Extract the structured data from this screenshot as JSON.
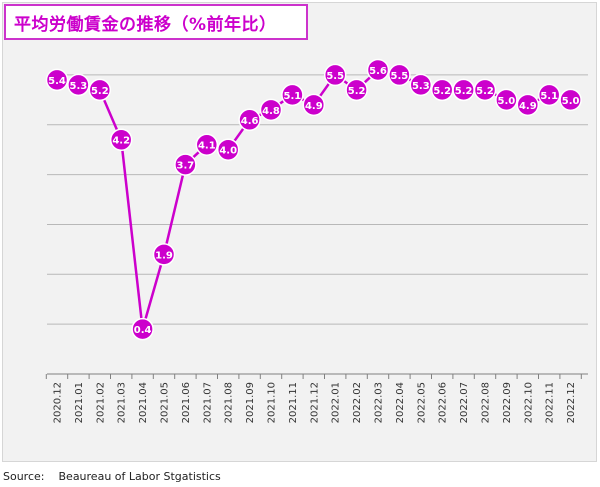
{
  "title": "平均労働賃金の推移（%前年比）",
  "source": {
    "label": "Source:",
    "text": "Beaureau of Labor Stgatistics"
  },
  "colors": {
    "series": "#cc00cc",
    "title_border": "#cc33cc",
    "grid": "#b8b8b8",
    "panel": "#f2f2f2"
  },
  "chart_data": {
    "type": "line",
    "title": "平均労働賃金の推移（%前年比）",
    "xlabel": "",
    "ylabel": "",
    "ylim": [
      -0.5,
      6.0
    ],
    "grid": true,
    "data_labels": true,
    "categories": [
      "2020.12",
      "2021.01",
      "2021.02",
      "2021.03",
      "2021.04",
      "2021.05",
      "2021.06",
      "2021.07",
      "2021.08",
      "2021.09",
      "2021.10",
      "2021.11",
      "2021.12",
      "2022.01",
      "2022.02",
      "2022.03",
      "2022.04",
      "2022.05",
      "2022.06",
      "2022.07",
      "2022.08",
      "2022.09",
      "2022.10",
      "2022.11",
      "2022.12"
    ],
    "series": [
      {
        "values": [
          5.4,
          5.3,
          5.2,
          4.2,
          0.4,
          1.9,
          3.7,
          4.1,
          4.0,
          4.6,
          4.8,
          5.1,
          4.9,
          5.5,
          5.2,
          5.6,
          5.5,
          5.3,
          5.2,
          5.2,
          5.2,
          5.0,
          4.9,
          5.1,
          5.0
        ]
      }
    ]
  }
}
